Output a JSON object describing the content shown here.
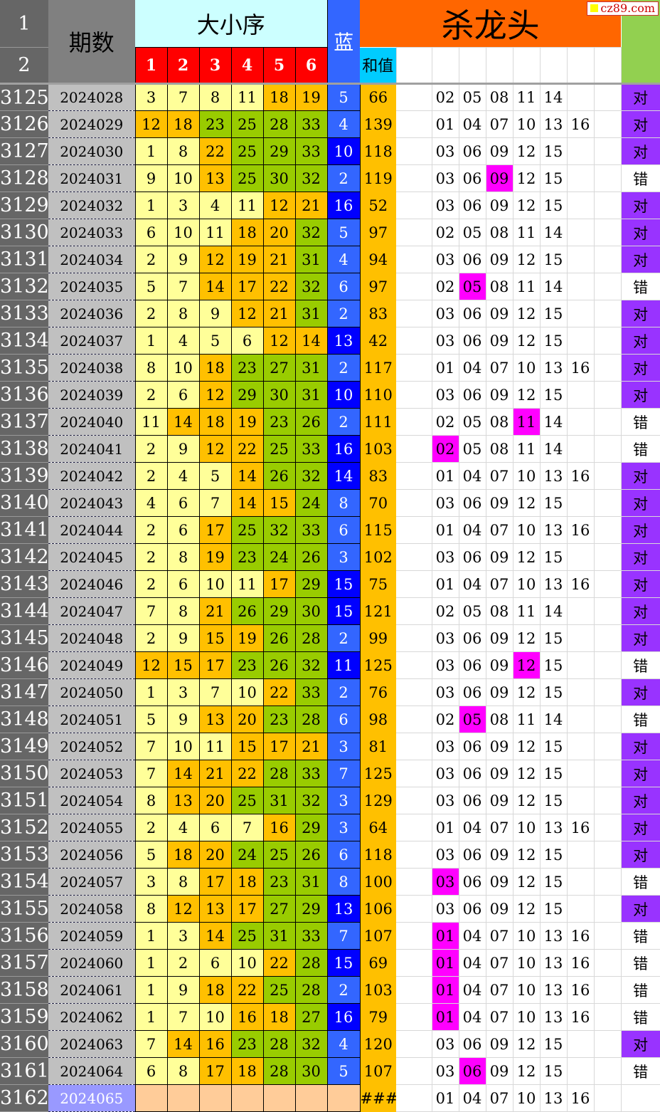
{
  "header": {
    "row1": "1",
    "row2": "2",
    "period": "期数",
    "order_title": "大小序",
    "cols": [
      "1",
      "2",
      "3",
      "4",
      "5",
      "6"
    ],
    "blue": "蓝",
    "kill_title": "杀龙头",
    "sum": "和值"
  },
  "watermark": "cz89.com",
  "colors": {
    "small": "#ffff99",
    "mid": "#ffc000",
    "large": "#99cc00",
    "blue_low": "#3366ff",
    "blue_high": "#0000ff",
    "highlight": "#ff00ff",
    "correct": "#9933ff",
    "next_period": "#9999ff",
    "empty_num": "#ffcc99"
  },
  "kill_sets": {
    "A": [
      "02",
      "05",
      "08",
      "11",
      "14"
    ],
    "B": [
      "01",
      "04",
      "07",
      "10",
      "13",
      "16"
    ],
    "C": [
      "03",
      "06",
      "09",
      "12",
      "15"
    ]
  },
  "rows": [
    [
      "3125",
      "2024028",
      [
        3,
        7,
        8,
        11,
        18,
        19
      ],
      5,
      "66",
      "A",
      -1,
      "对"
    ],
    [
      "3126",
      "2024029",
      [
        12,
        18,
        23,
        25,
        28,
        33
      ],
      4,
      "139",
      "B",
      -1,
      "对"
    ],
    [
      "3127",
      "2024030",
      [
        1,
        8,
        22,
        25,
        29,
        33
      ],
      10,
      "118",
      "C",
      -1,
      "对"
    ],
    [
      "3128",
      "2024031",
      [
        9,
        10,
        13,
        25,
        30,
        32
      ],
      2,
      "119",
      "C",
      2,
      "错"
    ],
    [
      "3129",
      "2024032",
      [
        1,
        3,
        4,
        11,
        12,
        21
      ],
      16,
      "52",
      "C",
      -1,
      "对"
    ],
    [
      "3130",
      "2024033",
      [
        6,
        10,
        11,
        18,
        20,
        32
      ],
      5,
      "97",
      "A",
      -1,
      "对"
    ],
    [
      "3131",
      "2024034",
      [
        2,
        9,
        12,
        19,
        21,
        31
      ],
      4,
      "94",
      "C",
      -1,
      "对"
    ],
    [
      "3132",
      "2024035",
      [
        5,
        7,
        14,
        17,
        22,
        32
      ],
      6,
      "97",
      "A",
      1,
      "错"
    ],
    [
      "3133",
      "2024036",
      [
        2,
        8,
        9,
        12,
        21,
        31
      ],
      2,
      "83",
      "C",
      -1,
      "对"
    ],
    [
      "3134",
      "2024037",
      [
        1,
        4,
        5,
        6,
        12,
        14
      ],
      13,
      "42",
      "C",
      -1,
      "对"
    ],
    [
      "3135",
      "2024038",
      [
        8,
        10,
        18,
        23,
        27,
        31
      ],
      2,
      "117",
      "B",
      -1,
      "对"
    ],
    [
      "3136",
      "2024039",
      [
        2,
        6,
        12,
        29,
        30,
        31
      ],
      10,
      "110",
      "C",
      -1,
      "对"
    ],
    [
      "3137",
      "2024040",
      [
        11,
        14,
        18,
        19,
        23,
        26
      ],
      2,
      "111",
      "A",
      3,
      "错"
    ],
    [
      "3138",
      "2024041",
      [
        2,
        9,
        12,
        22,
        25,
        33
      ],
      16,
      "103",
      "A",
      0,
      "错"
    ],
    [
      "3139",
      "2024042",
      [
        2,
        4,
        5,
        14,
        26,
        32
      ],
      14,
      "83",
      "B",
      -1,
      "对"
    ],
    [
      "3140",
      "2024043",
      [
        4,
        6,
        7,
        14,
        15,
        24
      ],
      8,
      "70",
      "C",
      -1,
      "对"
    ],
    [
      "3141",
      "2024044",
      [
        2,
        6,
        17,
        25,
        32,
        33
      ],
      6,
      "115",
      "B",
      -1,
      "对"
    ],
    [
      "3142",
      "2024045",
      [
        2,
        8,
        19,
        23,
        24,
        26
      ],
      3,
      "102",
      "C",
      -1,
      "对"
    ],
    [
      "3143",
      "2024046",
      [
        2,
        6,
        10,
        11,
        17,
        29
      ],
      15,
      "75",
      "B",
      -1,
      "对"
    ],
    [
      "3144",
      "2024047",
      [
        7,
        8,
        21,
        26,
        29,
        30
      ],
      15,
      "121",
      "A",
      -1,
      "对"
    ],
    [
      "3145",
      "2024048",
      [
        2,
        9,
        15,
        19,
        26,
        28
      ],
      2,
      "99",
      "C",
      -1,
      "对"
    ],
    [
      "3146",
      "2024049",
      [
        12,
        15,
        17,
        23,
        26,
        32
      ],
      11,
      "125",
      "C",
      3,
      "错"
    ],
    [
      "3147",
      "2024050",
      [
        1,
        3,
        7,
        10,
        22,
        33
      ],
      2,
      "76",
      "C",
      -1,
      "对"
    ],
    [
      "3148",
      "2024051",
      [
        5,
        9,
        13,
        20,
        23,
        28
      ],
      6,
      "98",
      "A",
      1,
      "错"
    ],
    [
      "3149",
      "2024052",
      [
        7,
        10,
        11,
        15,
        17,
        21
      ],
      3,
      "81",
      "C",
      -1,
      "对"
    ],
    [
      "3150",
      "2024053",
      [
        7,
        14,
        21,
        22,
        28,
        33
      ],
      7,
      "125",
      "C",
      -1,
      "对"
    ],
    [
      "3151",
      "2024054",
      [
        8,
        13,
        20,
        25,
        31,
        32
      ],
      3,
      "129",
      "C",
      -1,
      "对"
    ],
    [
      "3152",
      "2024055",
      [
        2,
        4,
        6,
        7,
        16,
        29
      ],
      3,
      "64",
      "B",
      -1,
      "对"
    ],
    [
      "3153",
      "2024056",
      [
        5,
        18,
        20,
        24,
        25,
        26
      ],
      6,
      "118",
      "C",
      -1,
      "对"
    ],
    [
      "3154",
      "2024057",
      [
        3,
        8,
        17,
        18,
        23,
        31
      ],
      8,
      "100",
      "C",
      0,
      "错"
    ],
    [
      "3155",
      "2024058",
      [
        8,
        12,
        13,
        17,
        27,
        29
      ],
      13,
      "106",
      "C",
      -1,
      "对"
    ],
    [
      "3156",
      "2024059",
      [
        1,
        3,
        14,
        25,
        31,
        33
      ],
      7,
      "107",
      "B",
      0,
      "错"
    ],
    [
      "3157",
      "2024060",
      [
        1,
        2,
        6,
        10,
        22,
        28
      ],
      15,
      "69",
      "B",
      0,
      "错"
    ],
    [
      "3158",
      "2024061",
      [
        1,
        9,
        18,
        22,
        25,
        28
      ],
      2,
      "103",
      "B",
      0,
      "错"
    ],
    [
      "3159",
      "2024062",
      [
        1,
        7,
        10,
        16,
        18,
        27
      ],
      16,
      "79",
      "B",
      0,
      "错"
    ],
    [
      "3160",
      "2024063",
      [
        7,
        14,
        16,
        23,
        28,
        32
      ],
      4,
      "120",
      "C",
      -1,
      "对"
    ],
    [
      "3161",
      "2024064",
      [
        6,
        8,
        17,
        18,
        28,
        30
      ],
      5,
      "107",
      "C",
      1,
      "错"
    ],
    [
      "3162",
      "2024065",
      null,
      null,
      "###",
      "B",
      -1,
      ""
    ]
  ]
}
